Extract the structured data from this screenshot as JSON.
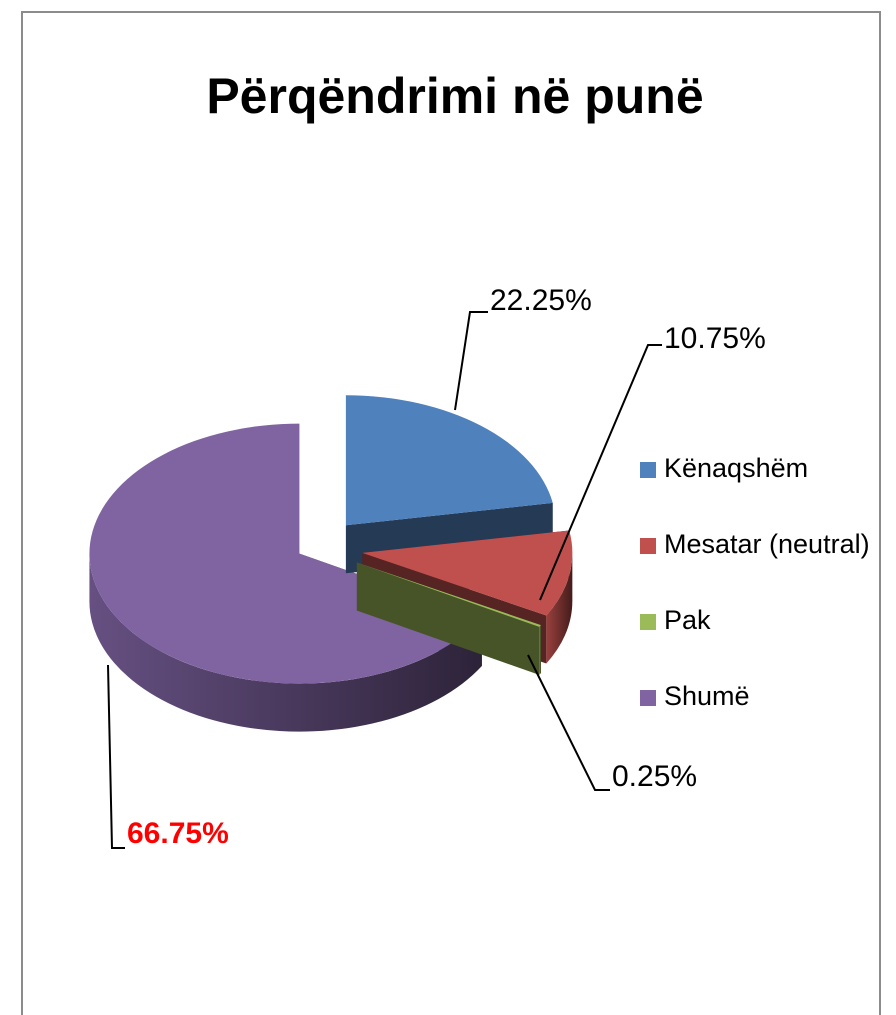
{
  "chart_data": {
    "type": "pie3d",
    "title": "Përqëndrimi në punë",
    "categories": [
      "Kënaqshëm",
      "Mesatar (neutral)",
      "Pak",
      "Shumë"
    ],
    "values": [
      22.25,
      10.75,
      0.25,
      66.75
    ],
    "value_labels": [
      "22.25%",
      "10.75%",
      "0.25%",
      "66.75%"
    ],
    "value_label_colors": [
      "#000000",
      "#000000",
      "#000000",
      "#ff0000"
    ],
    "colors": [
      "#4f81bd",
      "#c0504d",
      "#9bbb59",
      "#8064a2"
    ],
    "legend": "right"
  }
}
